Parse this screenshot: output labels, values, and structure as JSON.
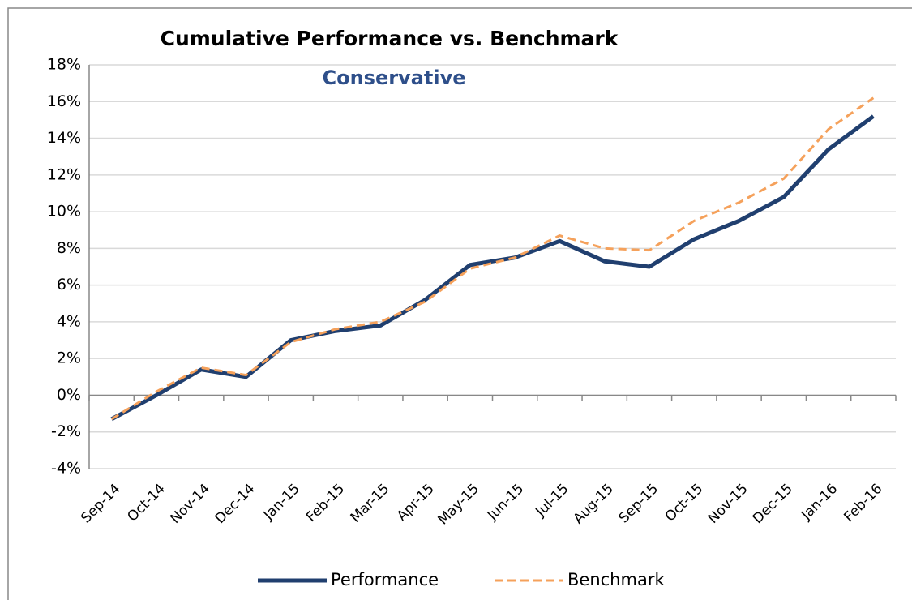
{
  "chart_data": {
    "type": "line",
    "title": "Cumulative Performance vs. Benchmark",
    "subtitle": "Conservative",
    "categories": [
      "Sep-14",
      "Oct-14",
      "Nov-14",
      "Dec-14",
      "Jan-15",
      "Feb-15",
      "Mar-15",
      "Apr-15",
      "May-15",
      "Jun-15",
      "Jul-15",
      "Aug-15",
      "Sep-15",
      "Oct-15",
      "Nov-15",
      "Dec-15",
      "Jan-16",
      "Feb-16"
    ],
    "series": [
      {
        "name": "Performance",
        "color": "#203f6f",
        "values": [
          -1.3,
          0.0,
          1.4,
          1.0,
          3.0,
          3.5,
          3.8,
          5.2,
          7.1,
          7.5,
          8.4,
          7.3,
          7.0,
          8.5,
          9.5,
          10.8,
          13.4,
          15.2
        ]
      },
      {
        "name": "Benchmark",
        "color": "#f5a15b",
        "values": [
          -1.3,
          0.2,
          1.5,
          1.1,
          2.9,
          3.6,
          4.0,
          5.1,
          6.9,
          7.5,
          8.7,
          8.0,
          7.9,
          9.5,
          10.5,
          11.8,
          14.5,
          16.2
        ]
      }
    ],
    "ylim": [
      -4,
      18
    ],
    "yticks": [
      {
        "value": -4,
        "label": "-4%"
      },
      {
        "value": -2,
        "label": "-2%"
      },
      {
        "value": 0,
        "label": "0%"
      },
      {
        "value": 2,
        "label": "2%"
      },
      {
        "value": 4,
        "label": "4%"
      },
      {
        "value": 6,
        "label": "6%"
      },
      {
        "value": 8,
        "label": "8%"
      },
      {
        "value": 10,
        "label": "10%"
      },
      {
        "value": 12,
        "label": "12%"
      },
      {
        "value": 14,
        "label": "14%"
      },
      {
        "value": 16,
        "label": "16%"
      },
      {
        "value": 18,
        "label": "18%"
      }
    ],
    "grid": true,
    "legend": "bottom"
  }
}
